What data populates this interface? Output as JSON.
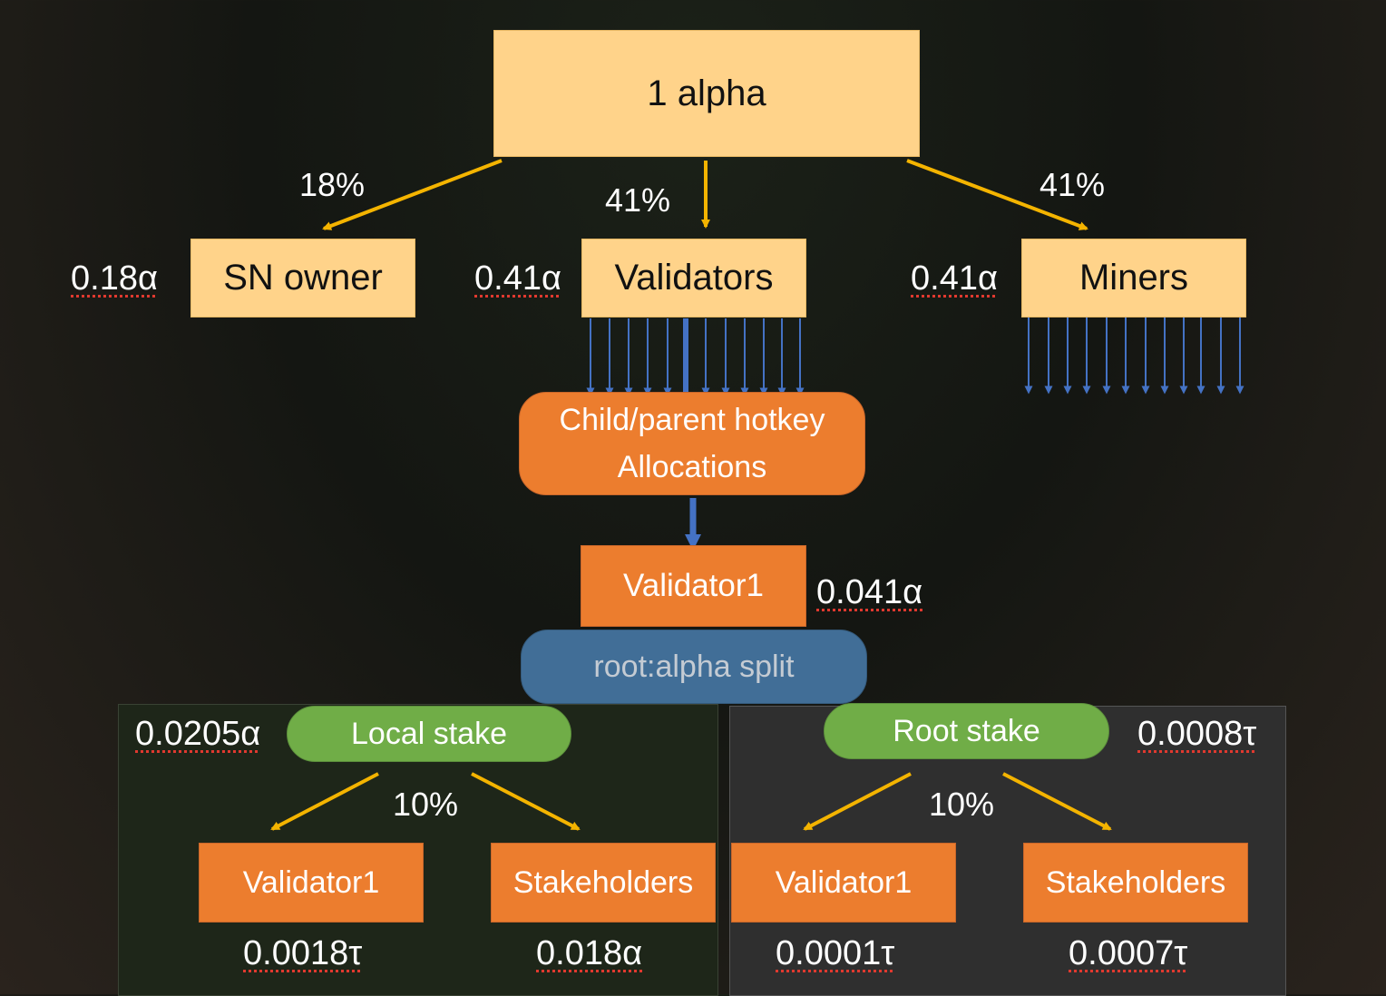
{
  "top": {
    "label": "1 alpha"
  },
  "percentages": {
    "sn_owner": "18%",
    "validators": "41%",
    "miners": "41%"
  },
  "tier1": {
    "sn_owner": {
      "label": "SN owner",
      "amount": "0.18α"
    },
    "validators": {
      "label": "Validators",
      "amount": "0.41α"
    },
    "miners": {
      "label": "Miners",
      "amount": "0.41α"
    }
  },
  "hotkey": {
    "line1": "Child/parent hotkey",
    "line2": "Allocations"
  },
  "validator1": {
    "label": "Validator1",
    "amount": "0.041α"
  },
  "split": {
    "label": "root:alpha split"
  },
  "local": {
    "label": "Local stake",
    "amount": "0.0205α",
    "percent": "10%",
    "validator": {
      "label": "Validator1",
      "amount": "0.0018τ"
    },
    "stakeholders": {
      "label": "Stakeholders",
      "amount": "0.018α"
    }
  },
  "root": {
    "label": "Root stake",
    "amount": "0.0008τ",
    "percent": "10%",
    "validator": {
      "label": "Validator1",
      "amount": "0.0001τ"
    },
    "stakeholders": {
      "label": "Stakeholders",
      "amount": "0.0007τ"
    }
  },
  "colors": {
    "yellow_box": "#ffd38a",
    "orange_box": "#ec7d2e",
    "green_pill": "#70ad47",
    "blue_pill": "#416e97",
    "arrow_yellow": "#f4b400",
    "arrow_blue": "#4472c4",
    "amount_underline": "#e0392f"
  }
}
